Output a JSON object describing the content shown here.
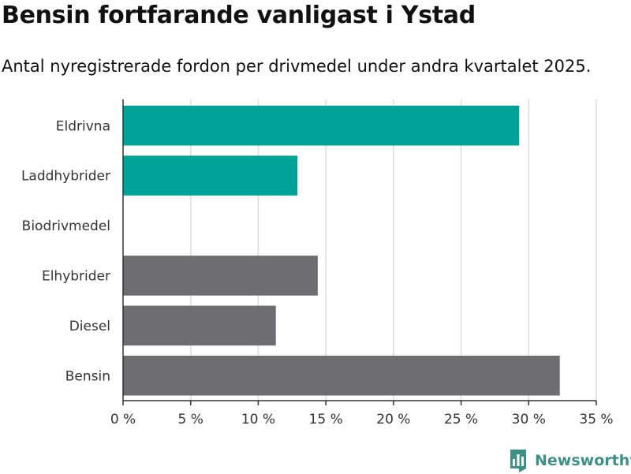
{
  "title": "Bensin fortfarande vanligast i Ystad",
  "subtitle": "Antal nyregistrerade fordon per drivmedel under andra kvartalet 2025.",
  "brand": "Newsworthy",
  "colors": {
    "highlight": "#00a398",
    "default": "#6d6d72",
    "grid": "#dddddd",
    "axis": "#333333",
    "brand": "#3e8f86"
  },
  "chart_data": {
    "type": "bar",
    "orientation": "horizontal",
    "categories": [
      "Eldrivna",
      "Laddhybrider",
      "Biodrivmedel",
      "Elhybrider",
      "Diesel",
      "Bensin"
    ],
    "values": [
      29.3,
      12.9,
      0,
      14.4,
      11.3,
      32.3
    ],
    "bar_colors": [
      "highlight",
      "highlight",
      "highlight",
      "default",
      "default",
      "default"
    ],
    "xlim": [
      0,
      35
    ],
    "ticks": [
      0,
      5,
      10,
      15,
      20,
      25,
      30,
      35
    ],
    "tick_labels": [
      "0 %",
      "5 %",
      "10 %",
      "15 %",
      "20 %",
      "25 %",
      "30 %",
      "35 %"
    ],
    "grid": true,
    "xlabel": "",
    "ylabel": ""
  }
}
